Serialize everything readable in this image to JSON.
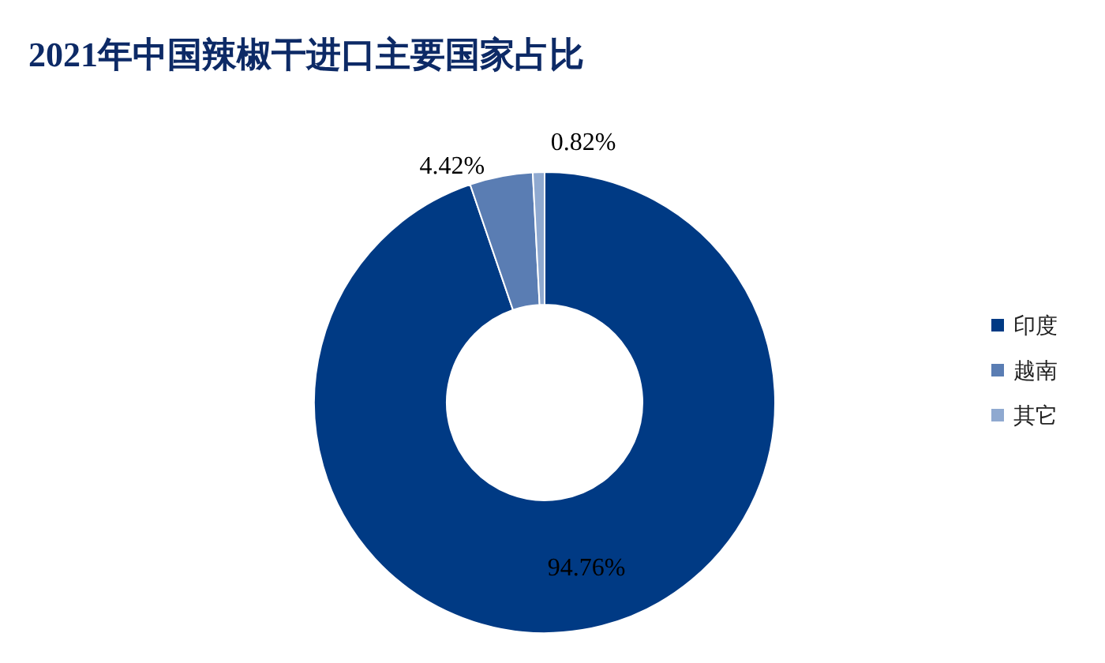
{
  "chart_data": {
    "type": "donut",
    "title": "2021年中国辣椒干进口主要国家占比",
    "categories": [
      "印度",
      "越南",
      "其它"
    ],
    "values": [
      94.76,
      4.42,
      0.82
    ],
    "colors": [
      "#003a84",
      "#5a7db3",
      "#8fa9d0"
    ],
    "value_labels": [
      "94.76%",
      "4.42%",
      "0.82%"
    ],
    "legend": "right"
  }
}
